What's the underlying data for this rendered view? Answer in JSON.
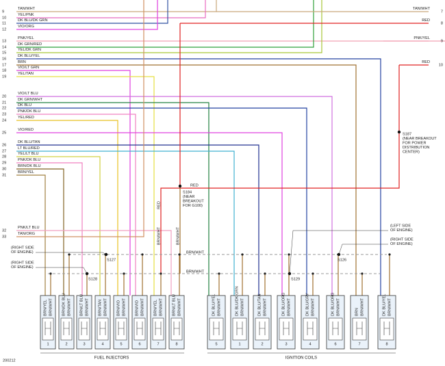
{
  "left_wires": [
    {
      "pin": 9,
      "color": "TAN/WHT"
    },
    {
      "pin": 10,
      "color": "YEL/PNK"
    },
    {
      "pin": 11,
      "color": "DK BLU/DK GRN"
    },
    {
      "pin": 12,
      "color": "VIO/ORG"
    },
    {
      "pin": 13,
      "color": "PNK/YEL"
    },
    {
      "pin": 14,
      "color": "DK GRN/RED"
    },
    {
      "pin": 15,
      "color": "YEL/DK GRN"
    },
    {
      "pin": 16,
      "color": "DK BLU/YEL"
    },
    {
      "pin": 17,
      "color": "BRN"
    },
    {
      "pin": 18,
      "color": "VIO/LT GRN"
    },
    {
      "pin": 19,
      "color": "YEL/TAN"
    },
    {
      "pin": 20,
      "color": "VIO/LT BLU"
    },
    {
      "pin": 21,
      "color": "DK GRN/WHT"
    },
    {
      "pin": 22,
      "color": "DK BLU"
    },
    {
      "pin": 23,
      "color": "PNK/DK BLU"
    },
    {
      "pin": 24,
      "color": "YEL/RED"
    },
    {
      "pin": 25,
      "color": "VIO/RED"
    },
    {
      "pin": 26,
      "color": "DK BLU/TAN"
    },
    {
      "pin": 27,
      "color": "LT BLU/RED"
    },
    {
      "pin": 28,
      "color": "YEL/LT BLU"
    },
    {
      "pin": 29,
      "color": "PNK/DK BLU"
    },
    {
      "pin": 30,
      "color": "BRN/DK BLU"
    },
    {
      "pin": 31,
      "color": "BRN/YEL"
    },
    {
      "pin": 32,
      "color": "PNK/LT BLU"
    },
    {
      "pin": 33,
      "color": "TAN/ORG"
    }
  ],
  "right_wires": [
    {
      "pin": 7,
      "color": "TAN/WHT"
    },
    {
      "pin": 8,
      "color": "RED"
    },
    {
      "pin": 9,
      "color": "PNK/YEL"
    },
    {
      "pin": 10,
      "color": "RED"
    }
  ],
  "splices": [
    {
      "id": "S187",
      "note": [
        "(NEAR BREAKOUT",
        "FOR POWER",
        "DISTRIBUTION",
        "CENTER)"
      ]
    },
    {
      "id": "S184",
      "note": [
        "(NEAR",
        "BREAKOUT",
        "FOR G100)"
      ]
    },
    {
      "id": "S127",
      "note": []
    },
    {
      "id": "S128",
      "note": []
    },
    {
      "id": "S129",
      "note": []
    },
    {
      "id": "S126",
      "note": []
    }
  ],
  "locations": [
    [
      "(RIGHT SIDE",
      "OF ENGINE)"
    ],
    [
      "(RIGHT SIDE",
      "OF ENGINE)"
    ],
    [
      "(LEFT SIDE",
      "OF ENGINE)"
    ],
    [
      "(RIGHT SIDE",
      "OF ENGINE)"
    ]
  ],
  "wire_labels": [
    "RED",
    "RED",
    "BRN/WHT",
    "BRN/WHT",
    "BRN/WHT",
    "BRN/WHT"
  ],
  "fuel_injectors": {
    "title": "FUEL INJECTORS",
    "connectors": [
      {
        "number": 1,
        "wires": [
          "BRN/YEL",
          "BRN/WHT"
        ]
      },
      {
        "number": 2,
        "wires": [
          "BRN/DK BLU",
          "BRN/WHT"
        ]
      },
      {
        "number": 3,
        "wires": [
          "BRN/LT BLU",
          "BRN/WHT"
        ]
      },
      {
        "number": 4,
        "wires": [
          "BRN/TAN",
          "BRN/WHT"
        ]
      },
      {
        "number": 5,
        "wires": [
          "BRN/VIO",
          "BRN/WHT"
        ]
      },
      {
        "number": 6,
        "wires": [
          "BRN/VIO",
          "BRN/WHT"
        ]
      },
      {
        "number": 7,
        "wires": [
          "BRN/YEL",
          "BRN/WHT"
        ]
      },
      {
        "number": 8,
        "wires": [
          "BRN/LT BLU",
          "BRN/WHT"
        ]
      }
    ]
  },
  "ignition_coils": {
    "title": "IGNITION COILS",
    "connectors": [
      {
        "number": 5,
        "wires": [
          "DK BLU/YEL",
          "BRN/WHT"
        ]
      },
      {
        "number": 1,
        "wires": [
          "DK BLU/DK GRN",
          "BRN/WHT"
        ]
      },
      {
        "number": 2,
        "wires": [
          "DK BLU/TAN",
          "BRN/WHT"
        ]
      },
      {
        "number": 3,
        "wires": [
          "DK BLU/ORG",
          "BRN/WHT"
        ]
      },
      {
        "number": 4,
        "wires": [
          "DK BLU/GRY",
          "BRN/WHT"
        ]
      },
      {
        "number": 6,
        "wires": [
          "DK BLU/ORG",
          "BRN/WHT"
        ]
      },
      {
        "number": 7,
        "wires": [
          "BRN",
          "BRN/WHT"
        ]
      },
      {
        "number": 8,
        "wires": [
          "DK BLU/YEL",
          "BRN/WHT"
        ]
      }
    ]
  },
  "figure_id": "200212"
}
